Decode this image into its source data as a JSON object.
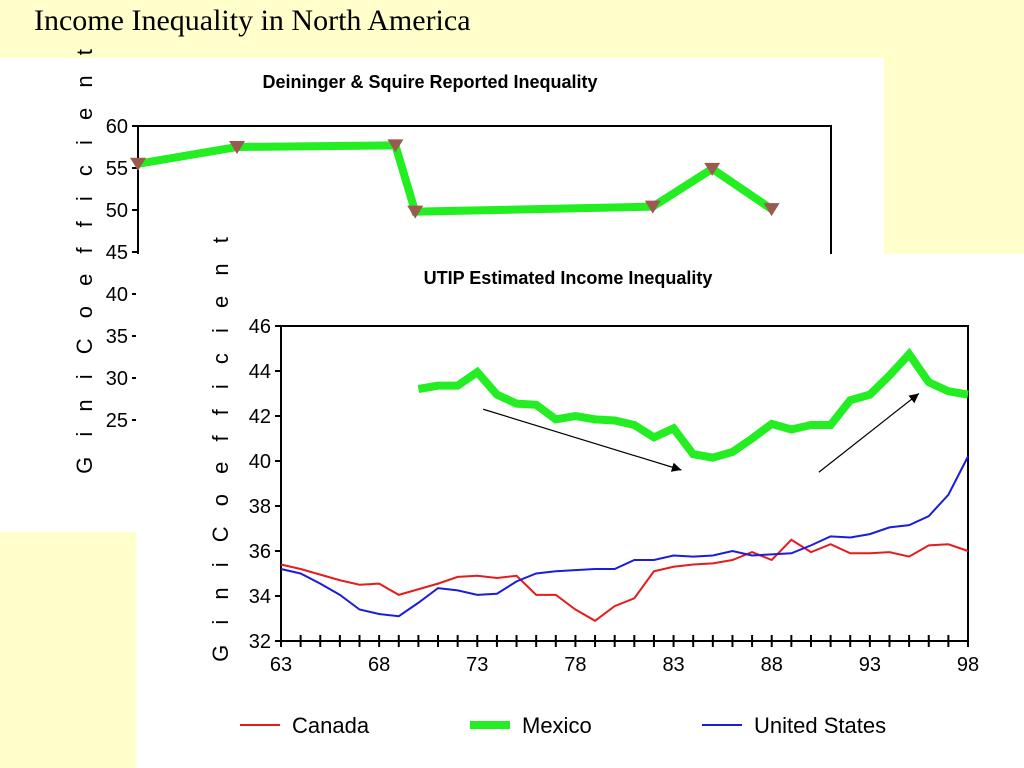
{
  "slide": {
    "title": "Income Inequality in North America"
  },
  "chart_data": [
    {
      "type": "line",
      "title": "Deininger & Squire Reported Inequality",
      "ylabel": "G i n i   C o e f f i c i e n t",
      "xlabel": "",
      "ylim": [
        25,
        60
      ],
      "yticks": [
        25,
        30,
        35,
        40,
        45,
        50,
        55,
        60
      ],
      "xlim": [
        63,
        98
      ],
      "grid": false,
      "series": [
        {
          "x": [
            63,
            68,
            76,
            77,
            89,
            92,
            95
          ],
          "values": [
            55.5,
            57.5,
            57.7,
            49.8,
            50.4,
            54.9,
            50.1
          ],
          "color": "#22ee22",
          "marker": "triangle-down",
          "marker_color": "#9b5a50"
        }
      ]
    },
    {
      "type": "line",
      "title": "UTIP Estimated  Income Inequality",
      "ylabel": "G i n i   C o e f f i c i e n t",
      "xlabel": "",
      "ylim": [
        32,
        46
      ],
      "yticks": [
        32,
        34,
        36,
        38,
        40,
        42,
        44,
        46
      ],
      "xlim": [
        63,
        98
      ],
      "xticks": [
        63,
        68,
        73,
        78,
        83,
        88,
        93,
        98
      ],
      "grid": false,
      "legend": "bottom",
      "series": [
        {
          "name": "Canada",
          "color": "#e51c1c",
          "width": 2,
          "x": [
            63,
            64,
            65,
            66,
            67,
            68,
            69,
            70,
            71,
            72,
            73,
            74,
            75,
            76,
            77,
            78,
            79,
            80,
            81,
            82,
            83,
            84,
            85,
            86,
            87,
            88,
            89,
            90,
            91,
            92,
            93,
            94,
            95,
            96,
            97,
            98
          ],
          "values": [
            35.4,
            35.2,
            34.95,
            34.7,
            34.5,
            34.55,
            34.05,
            34.3,
            34.55,
            34.85,
            34.9,
            34.8,
            34.9,
            34.05,
            34.05,
            33.4,
            32.9,
            33.55,
            33.9,
            35.1,
            35.3,
            35.4,
            35.45,
            35.6,
            35.95,
            35.6,
            36.5,
            35.95,
            36.3,
            35.9,
            35.9,
            35.95,
            35.75,
            36.25,
            36.3,
            36.0
          ]
        },
        {
          "name": "Mexico",
          "color": "#22ee22",
          "width": 8,
          "x": [
            70,
            71,
            72,
            73,
            74,
            75,
            76,
            77,
            78,
            79,
            80,
            81,
            82,
            83,
            84,
            85,
            86,
            87,
            88,
            89,
            90,
            91,
            92,
            93,
            94,
            95,
            96,
            97,
            98
          ],
          "values": [
            43.2,
            43.35,
            43.35,
            43.95,
            42.95,
            42.55,
            42.5,
            41.85,
            42.0,
            41.85,
            41.8,
            41.6,
            41.05,
            41.45,
            40.3,
            40.15,
            40.4,
            41.0,
            41.65,
            41.4,
            41.6,
            41.6,
            42.7,
            42.95,
            43.8,
            44.75,
            43.5,
            43.1,
            42.95
          ]
        },
        {
          "name": "United States",
          "color": "#1c1cdd",
          "width": 2,
          "x": [
            63,
            64,
            65,
            66,
            67,
            68,
            69,
            70,
            71,
            72,
            73,
            74,
            75,
            76,
            77,
            78,
            79,
            80,
            81,
            82,
            83,
            84,
            85,
            86,
            87,
            88,
            89,
            90,
            91,
            92,
            93,
            94,
            95,
            96,
            97,
            98
          ],
          "values": [
            35.2,
            35.0,
            34.55,
            34.05,
            33.4,
            33.2,
            33.1,
            33.7,
            34.35,
            34.25,
            34.05,
            34.1,
            34.65,
            35.0,
            35.1,
            35.15,
            35.2,
            35.2,
            35.6,
            35.6,
            35.8,
            35.75,
            35.8,
            36.0,
            35.8,
            35.85,
            35.9,
            36.25,
            36.65,
            36.6,
            36.75,
            37.05,
            37.15,
            37.55,
            38.5,
            40.2
          ]
        }
      ],
      "annotations": [
        {
          "type": "arrow",
          "from": [
            73.3,
            42.3
          ],
          "to": [
            83.4,
            39.6
          ]
        },
        {
          "type": "arrow",
          "from": [
            90.4,
            39.5
          ],
          "to": [
            95.5,
            43.0
          ]
        }
      ]
    }
  ]
}
